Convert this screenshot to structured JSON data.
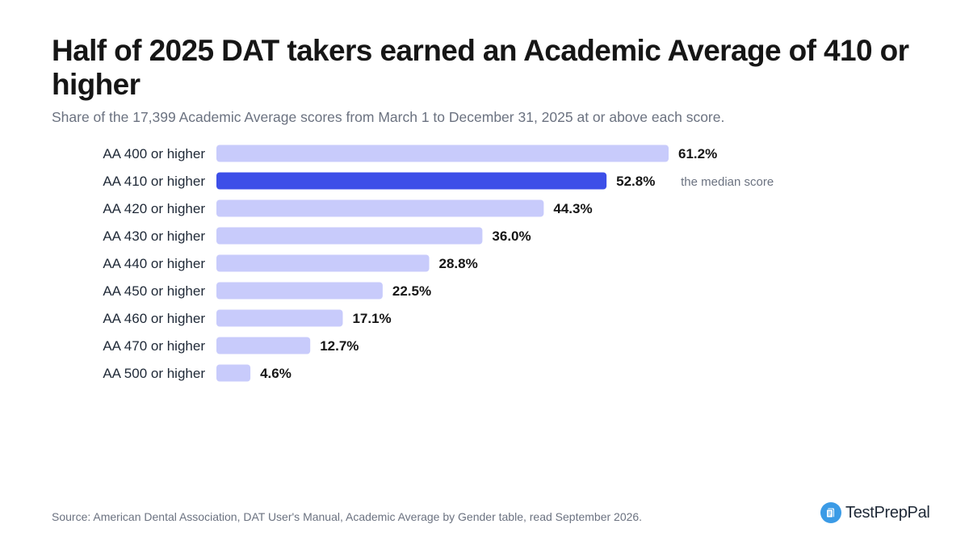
{
  "header": {
    "title": "Half of 2025 DAT takers earned an Academic Average of 410 or higher",
    "subtitle": "Share of the 17,399 Academic Average scores from March 1 to December 31, 2025 at or above each score."
  },
  "footer": {
    "source": "Source: American Dental Association, DAT User's Manual, Academic Average by Gender table, read September 2026.",
    "brand": "TestPrepPal",
    "brand_icon": "document-icon"
  },
  "colors": {
    "bar": "#c8cbfb",
    "highlight_bar": "#3d4fe8",
    "brand_accent": "#3b9be6"
  },
  "chart_data": {
    "type": "bar",
    "orientation": "horizontal",
    "categories": [
      "AA 400 or higher",
      "AA 410 or higher",
      "AA 420 or higher",
      "AA 430 or higher",
      "AA 440 or higher",
      "AA 450 or higher",
      "AA 460 or higher",
      "AA 470 or higher",
      "AA 500 or higher"
    ],
    "values": [
      61.2,
      52.8,
      44.3,
      36.0,
      28.8,
      22.5,
      17.1,
      12.7,
      4.6
    ],
    "value_labels": [
      "61.2%",
      "52.8%",
      "44.3%",
      "36.0%",
      "28.8%",
      "22.5%",
      "17.1%",
      "12.7%",
      "4.6%"
    ],
    "highlight_index": 1,
    "annotation": "the median score",
    "xlim": [
      0,
      61.2
    ],
    "grid": false,
    "legend": false
  }
}
